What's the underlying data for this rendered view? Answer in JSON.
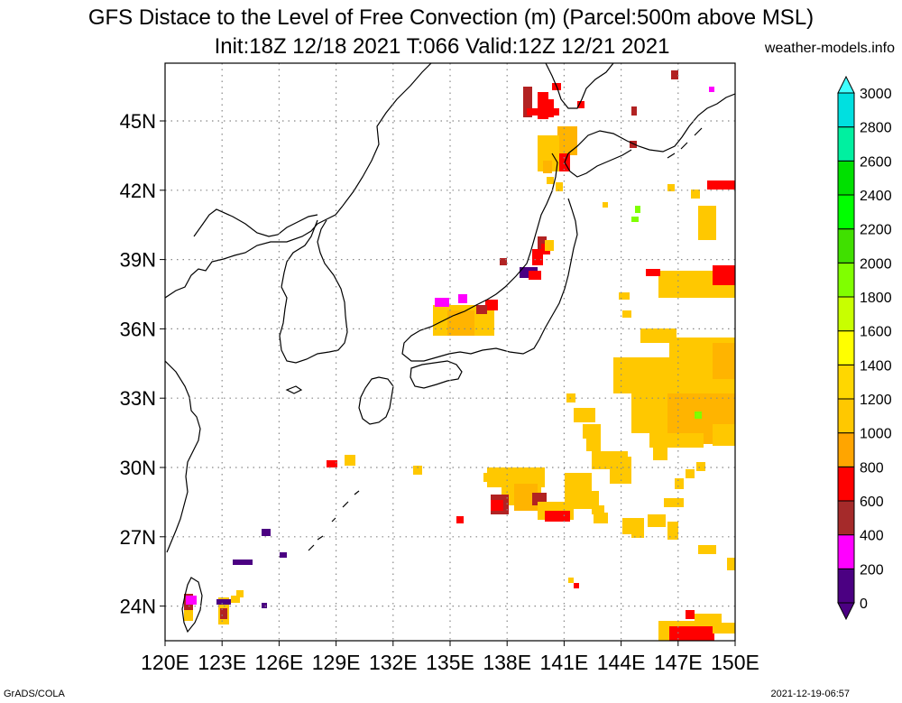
{
  "title_line1": "GFS Distace to the Level of Free Convection (m) (Parcel:500m above MSL)",
  "title_line2": "Init:18Z 12/18 2021 T:066 Valid:12Z 12/21 2021",
  "site": "weather-models.info",
  "footer_left": "GrADS/COLA",
  "footer_right": "2021-12-19-06:57",
  "lat_labels": [
    "45N",
    "42N",
    "39N",
    "36N",
    "33N",
    "30N",
    "27N",
    "24N"
  ],
  "lon_labels": [
    "120E",
    "123E",
    "126E",
    "129E",
    "132E",
    "135E",
    "138E",
    "141E",
    "144E",
    "147E",
    "150E"
  ],
  "colorbar": {
    "levels": [
      "0",
      "200",
      "400",
      "600",
      "800",
      "1000",
      "1200",
      "1400",
      "1600",
      "1800",
      "2000",
      "2200",
      "2400",
      "2600",
      "2800",
      "3000"
    ],
    "colors": [
      "#4b0082",
      "#ff00ff",
      "#a52a2a",
      "#ff0000",
      "#ffa500",
      "#ffc800",
      "#ffd700",
      "#ffff00",
      "#c8ff00",
      "#80ff00",
      "#40e000",
      "#00ff00",
      "#00e000",
      "#00f0a0",
      "#00e0e0",
      "#40ffff"
    ]
  }
}
